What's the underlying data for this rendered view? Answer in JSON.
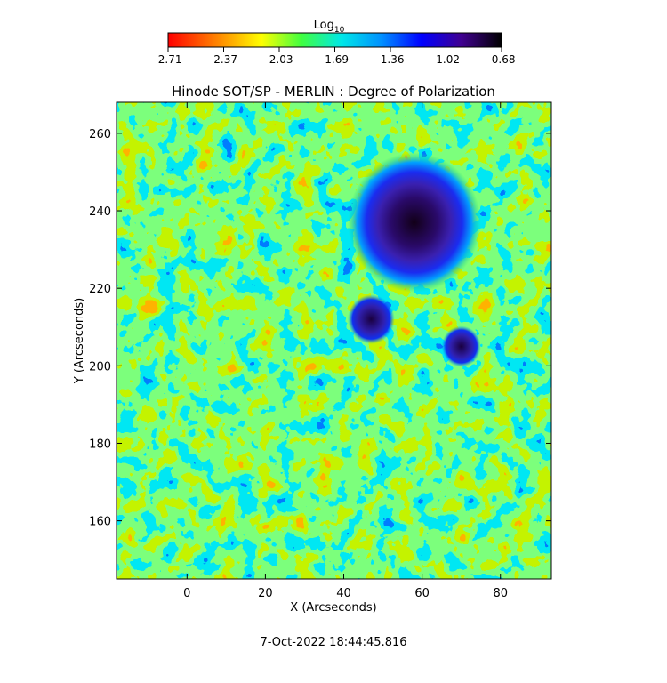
{
  "chart_data": {
    "type": "heatmap",
    "title": "Hinode SOT/SP - MERLIN : Degree of Polarization",
    "xlabel": "X (Arcseconds)",
    "ylabel": "Y (Arcseconds)",
    "xlim": [
      -18,
      93
    ],
    "ylim": [
      145,
      268
    ],
    "x_ticks": [
      0,
      20,
      40,
      60,
      80
    ],
    "y_ticks": [
      160,
      180,
      200,
      220,
      240,
      260
    ],
    "colorbar": {
      "label_base": "Log",
      "label_sub": "10",
      "ticks": [
        "-2.71",
        "-2.37",
        "-2.03",
        "-1.69",
        "-1.36",
        "-1.02",
        "-0.68"
      ],
      "range": [
        -2.71,
        -0.68
      ],
      "colormap": "rainbow (red=low, violet/black=high)"
    },
    "features": [
      {
        "label": "sunspot umbra",
        "x": 58,
        "y": 237,
        "radius": 9,
        "value": -0.72
      },
      {
        "label": "penumbra",
        "x": 58,
        "y": 237,
        "radius": 17,
        "value": -1.05
      },
      {
        "label": "pore",
        "x": 47,
        "y": 212,
        "radius": 6,
        "value": -0.8
      },
      {
        "label": "pore",
        "x": 70,
        "y": 205,
        "radius": 5,
        "value": -0.9
      }
    ]
  },
  "footer": {
    "timestamp": "7-Oct-2022 18:44:45.816"
  },
  "colors": {
    "background": "#ffffff",
    "axes": "#000000"
  }
}
